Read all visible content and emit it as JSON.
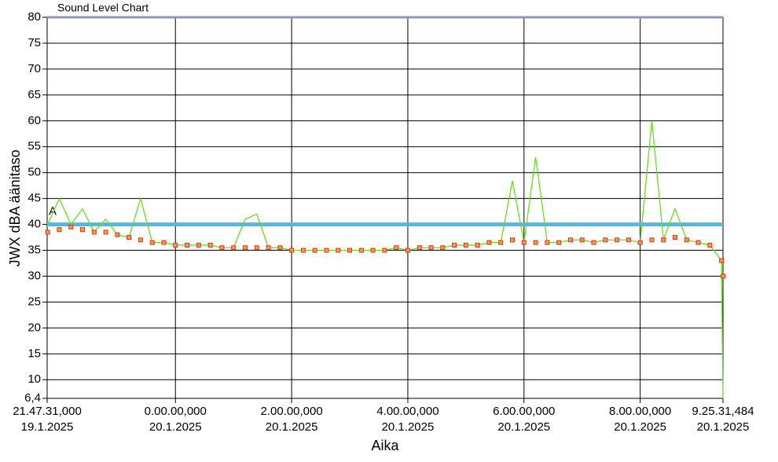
{
  "chart_data": {
    "type": "line",
    "title": "Sound Level Chart",
    "y_label": "JWX dBA äänitaso",
    "x_label": "Aika",
    "x": [
      -2.2,
      -2.0,
      -1.8,
      -1.6,
      -1.4,
      -1.2,
      -1.0,
      -0.8,
      -0.6,
      -0.4,
      -0.2,
      0,
      0.2,
      0.4,
      0.6,
      0.8,
      1.0,
      1.2,
      1.4,
      1.6,
      1.8,
      2.0,
      2.2,
      2.4,
      2.6,
      2.8,
      3.0,
      3.2,
      3.4,
      3.6,
      3.8,
      4.0,
      4.2,
      4.4,
      4.6,
      4.8,
      5.0,
      5.2,
      5.4,
      5.6,
      5.8,
      6.0,
      6.2,
      6.4,
      6.6,
      6.8,
      7.0,
      7.2,
      7.4,
      7.6,
      7.8,
      8.0,
      8.2,
      8.4,
      8.6,
      8.8,
      9.0,
      9.2,
      9.4,
      9.4254
    ],
    "series": [
      {
        "color": "#66dd22",
        "style": "line",
        "values": [
          40,
          45,
          40,
          43,
          38.5,
          41,
          38,
          37.5,
          45,
          36.5,
          36.5,
          36,
          36,
          36,
          36,
          35.5,
          35.5,
          41,
          42,
          35.5,
          35.5,
          35,
          35,
          35,
          35,
          35,
          35,
          35,
          35,
          35,
          35.5,
          35,
          35.5,
          35.5,
          35.5,
          36,
          36,
          36,
          36.5,
          36.5,
          48.4,
          36.5,
          53,
          36.5,
          36.5,
          37,
          37,
          36.5,
          37,
          37,
          37,
          36.5,
          60,
          37,
          43,
          37,
          36.5,
          36,
          33,
          6.4
        ]
      },
      {
        "color": "#f5a040",
        "edge": "#e03020",
        "style": "square",
        "values": [
          38.5,
          39,
          39.5,
          39,
          38.5,
          38.5,
          38,
          37.5,
          37,
          36.5,
          36.5,
          36,
          36,
          36,
          36,
          35.5,
          35.5,
          35.5,
          35.5,
          35.5,
          35.5,
          35,
          35,
          35,
          35,
          35,
          35,
          35,
          35,
          35,
          35.5,
          35,
          35.5,
          35.5,
          35.5,
          36,
          36,
          36,
          36.5,
          36.5,
          37,
          36.5,
          36.5,
          36.5,
          36.5,
          37,
          37,
          36.5,
          37,
          37,
          37,
          36.5,
          37,
          37,
          37.5,
          37,
          36.5,
          36,
          33,
          30
        ]
      }
    ],
    "limit": 40,
    "limit_color": "#4fb8ec",
    "limit_label": "A",
    "xlim": [
      -2.2086,
      9.4254
    ],
    "ylim": [
      6.4,
      80
    ],
    "xticks": [
      {
        "value": -2.2086,
        "label": [
          "21.47.31,000",
          "19.1.2025"
        ]
      },
      {
        "value": 0,
        "label": [
          "0.00.00,000",
          "20.1.2025"
        ]
      },
      {
        "value": 2,
        "label": [
          "2.00.00,000",
          "20.1.2025"
        ]
      },
      {
        "value": 4,
        "label": [
          "4.00.00,000",
          "20.1.2025"
        ]
      },
      {
        "value": 6,
        "label": [
          "6.00.00,000",
          "20.1.2025"
        ]
      },
      {
        "value": 8,
        "label": [
          "8.00.00,000",
          "20.1.2025"
        ]
      },
      {
        "value": 9.4254,
        "label": [
          "9.25.31,484",
          "20.1.2025"
        ]
      }
    ],
    "yticks": [
      {
        "value": 6.4,
        "label": "6,4"
      },
      10,
      15,
      20,
      25,
      30,
      35,
      40,
      45,
      50,
      55,
      60,
      65,
      70,
      75,
      80
    ],
    "grid": true
  }
}
